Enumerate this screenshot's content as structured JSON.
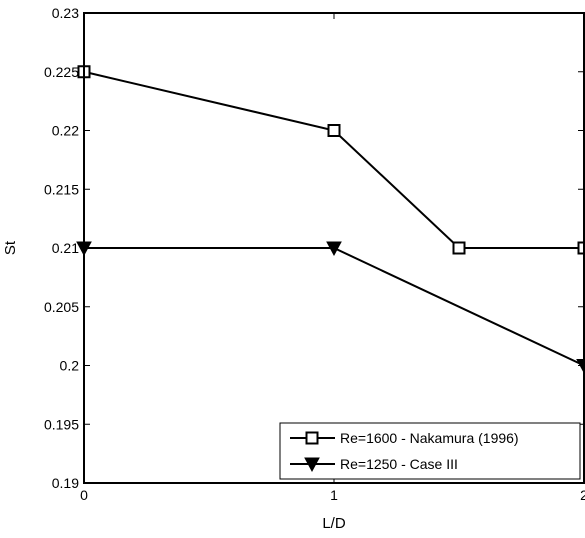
{
  "chart_data": {
    "type": "line",
    "xlabel": "L/D",
    "ylabel": "St",
    "xlim": [
      0,
      2
    ],
    "ylim": [
      0.19,
      0.23
    ],
    "x_ticks": [
      0,
      1,
      2
    ],
    "x_tick_labels": [
      "0",
      "1",
      "2"
    ],
    "y_ticks": [
      0.19,
      0.195,
      0.2,
      0.205,
      0.21,
      0.215,
      0.22,
      0.225,
      0.23
    ],
    "y_tick_labels": [
      "0.19",
      "0.195",
      "0.2",
      "0.205",
      "0.21",
      "0.215",
      "0.22",
      "0.225",
      "0.23"
    ],
    "grid": false,
    "legend_position": "bottom-right",
    "series": [
      {
        "name": "Re=1600 - Nakamura (1996)",
        "marker": "open-square",
        "color": "#000000",
        "x": [
          0,
          1,
          1.5,
          2
        ],
        "y": [
          0.225,
          0.22,
          0.21,
          0.21
        ]
      },
      {
        "name": "Re=1250 - Case III",
        "marker": "filled-down-triangle",
        "color": "#000000",
        "x": [
          0,
          1,
          2
        ],
        "y": [
          0.21,
          0.21,
          0.2
        ]
      }
    ]
  }
}
